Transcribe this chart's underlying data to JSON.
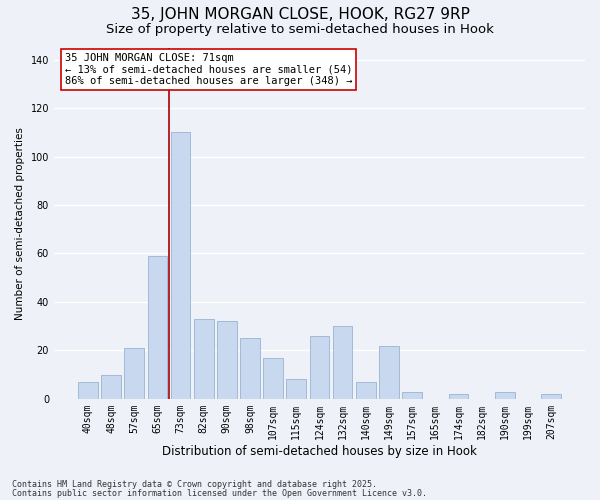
{
  "title": "35, JOHN MORGAN CLOSE, HOOK, RG27 9RP",
  "subtitle": "Size of property relative to semi-detached houses in Hook",
  "xlabel": "Distribution of semi-detached houses by size in Hook",
  "ylabel": "Number of semi-detached properties",
  "bar_labels": [
    "40sqm",
    "48sqm",
    "57sqm",
    "65sqm",
    "73sqm",
    "82sqm",
    "90sqm",
    "98sqm",
    "107sqm",
    "115sqm",
    "124sqm",
    "132sqm",
    "140sqm",
    "149sqm",
    "157sqm",
    "165sqm",
    "174sqm",
    "182sqm",
    "190sqm",
    "199sqm",
    "207sqm"
  ],
  "bar_values": [
    7,
    10,
    21,
    59,
    110,
    33,
    32,
    25,
    17,
    8,
    26,
    30,
    7,
    22,
    3,
    0,
    2,
    0,
    3,
    0,
    2
  ],
  "bar_color": "#c8d8ee",
  "bar_edge_color": "#9ab4d4",
  "highlight_index": 4,
  "highlight_line_color": "#aa0000",
  "ylim": [
    0,
    145
  ],
  "yticks": [
    0,
    20,
    40,
    60,
    80,
    100,
    120,
    140
  ],
  "annotation_title": "35 JOHN MORGAN CLOSE: 71sqm",
  "annotation_line1": "← 13% of semi-detached houses are smaller (54)",
  "annotation_line2": "86% of semi-detached houses are larger (348) →",
  "annotation_box_color": "#ffffff",
  "annotation_border_color": "#cc0000",
  "footnote1": "Contains HM Land Registry data © Crown copyright and database right 2025.",
  "footnote2": "Contains public sector information licensed under the Open Government Licence v3.0.",
  "background_color": "#eef2f8",
  "grid_color": "#ffffff",
  "title_fontsize": 11,
  "subtitle_fontsize": 9.5,
  "xlabel_fontsize": 8.5,
  "ylabel_fontsize": 7.5,
  "tick_fontsize": 7,
  "annotation_fontsize": 7.5,
  "footnote_fontsize": 6
}
